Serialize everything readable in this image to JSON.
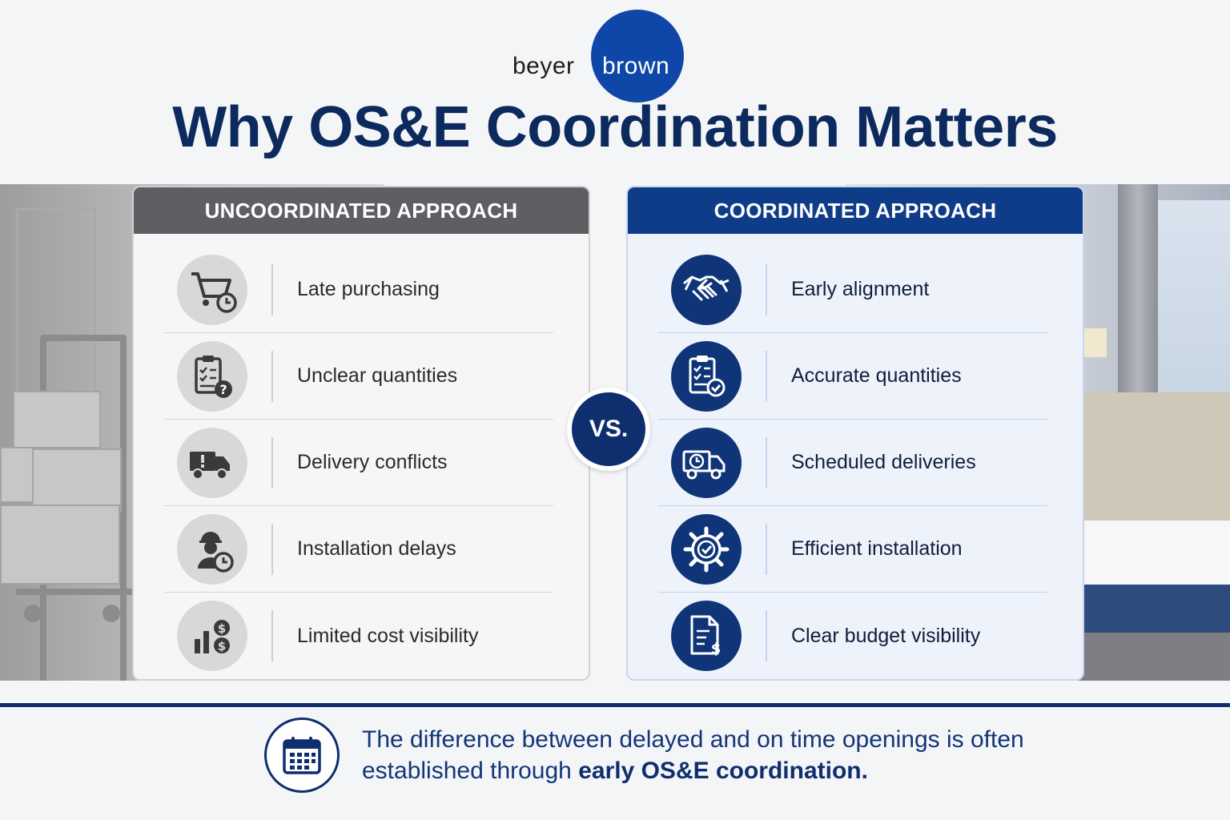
{
  "logo": {
    "left_text": "beyer",
    "right_text": "brown",
    "brand_color": "#0f47a8"
  },
  "title": "Why OS&E Coordination Matters",
  "left_panel": {
    "heading": "UNCOORDINATED APPROACH",
    "header_color": "#5d5f62",
    "items": [
      {
        "label": "Late purchasing",
        "icon": "cart-clock-icon"
      },
      {
        "label": "Unclear quantities",
        "icon": "clipboard-question-icon"
      },
      {
        "label": "Delivery conflicts",
        "icon": "truck-alert-icon"
      },
      {
        "label": "Installation delays",
        "icon": "worker-clock-icon"
      },
      {
        "label": "Limited cost visibility",
        "icon": "chart-dollar-icon"
      }
    ]
  },
  "vs_label": "VS.",
  "right_panel": {
    "heading": "COORDINATED APPROACH",
    "header_color": "#0f3c88",
    "items": [
      {
        "label": "Early alignment",
        "icon": "handshake-icon"
      },
      {
        "label": "Accurate quantities",
        "icon": "clipboard-check-icon"
      },
      {
        "label": "Scheduled deliveries",
        "icon": "truck-clock-icon"
      },
      {
        "label": "Efficient installation",
        "icon": "gear-check-icon"
      },
      {
        "label": "Clear budget visibility",
        "icon": "document-dollar-icon"
      }
    ]
  },
  "footer": {
    "text_before": "The difference between delayed and on time openings is often established through",
    "text_bold": "early OS&E coordination.",
    "icon": "calendar-icon",
    "accent_color": "#0f2e6e"
  }
}
